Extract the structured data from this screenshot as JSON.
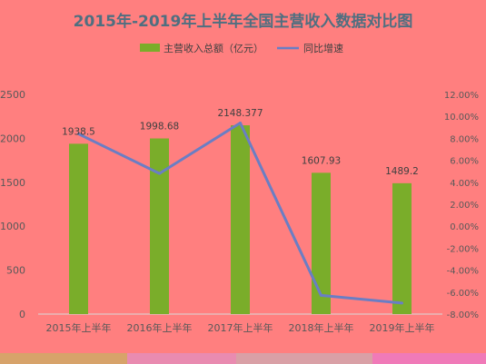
{
  "chart_data": {
    "type": "bar",
    "title": "2015年-2019年上半年全国主营收入数据对比图",
    "categories": [
      "2015年上半年",
      "2016年上半年",
      "2017年上半年",
      "2018年上半年",
      "2019年上半年"
    ],
    "series": [
      {
        "name": "主营收入总额（亿元）",
        "type": "bar",
        "axis": "left",
        "color": "#7aad2a",
        "values": [
          1938.5,
          1998.68,
          2148.377,
          1607.93,
          1489.2
        ],
        "labels": [
          "1938.5",
          "1998.68",
          "2148.377",
          "1607.93",
          "1489.2"
        ]
      },
      {
        "name": "同比增速",
        "type": "line",
        "axis": "right",
        "color": "#6a7ec4",
        "values": [
          8.4,
          4.8,
          9.4,
          -6.3,
          -7.0
        ]
      }
    ],
    "y_left": {
      "min": 0,
      "max": 2500,
      "ticks": [
        0,
        500,
        1000,
        1500,
        2000,
        2500
      ],
      "tick_labels": [
        "0",
        "500",
        "1000",
        "1500",
        "2000",
        "2500"
      ]
    },
    "y_right": {
      "min": -8,
      "max": 12,
      "ticks": [
        -8,
        -6,
        -4,
        -2,
        0,
        2,
        4,
        6,
        8,
        10,
        12
      ],
      "tick_labels": [
        "-8.00%",
        "-6.00%",
        "-4.00%",
        "-2.00%",
        "0.00%",
        "2.00%",
        "4.00%",
        "6.00%",
        "8.00%",
        "10.00%",
        "12.00%"
      ]
    },
    "legend_position": "top",
    "grid": false
  },
  "colors": {
    "background": "#ff7f7f",
    "title": "#4f6f80",
    "bar": "#7aad2a",
    "line": "#6a7ec4"
  }
}
